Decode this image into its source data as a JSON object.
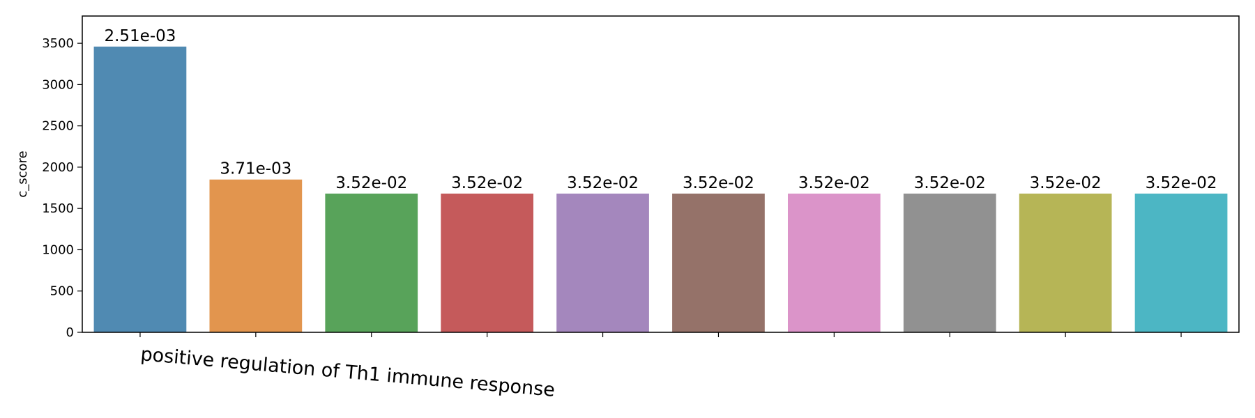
{
  "chart_data": {
    "type": "bar",
    "categories": [
      "positive regulation of Th1 immune response",
      "",
      "",
      "",
      "",
      "",
      "",
      "",
      "",
      ""
    ],
    "values": [
      3460,
      1850,
      1680,
      1680,
      1680,
      1680,
      1680,
      1680,
      1680,
      1680
    ],
    "bar_labels": [
      "2.51e-03",
      "3.71e-03",
      "3.52e-02",
      "3.52e-02",
      "3.52e-02",
      "3.52e-02",
      "3.52e-02",
      "3.52e-02",
      "3.52e-02",
      "3.52e-02"
    ],
    "colors": [
      "#508ab2",
      "#e2954e",
      "#58a35a",
      "#c55a5b",
      "#a487bd",
      "#957269",
      "#db94c9",
      "#919191",
      "#b6b556",
      "#4cb6c4"
    ],
    "title": "",
    "xlabel": "",
    "ylabel": "c_score",
    "ylim": [
      0,
      3830
    ],
    "yticks": [
      0,
      500,
      1000,
      1500,
      2000,
      2500,
      3000,
      3500
    ],
    "grid": false
  }
}
